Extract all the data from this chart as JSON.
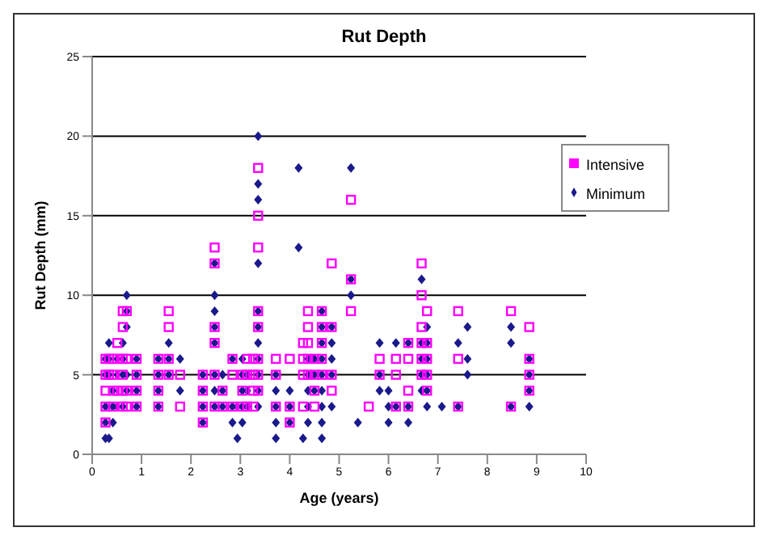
{
  "chart_data": {
    "type": "scatter",
    "title": "Rut Depth",
    "xlabel": "Age (years)",
    "ylabel": "Rut Depth (mm)",
    "xlim": [
      0,
      10
    ],
    "xticks": [
      0,
      1,
      2,
      3,
      4,
      5,
      6,
      7,
      8,
      9,
      10
    ],
    "ylim": [
      0,
      25
    ],
    "yticks": [
      0,
      5,
      10,
      15,
      20,
      25
    ],
    "grid": "y",
    "legend": "top right",
    "series": [
      {
        "name": "Minimum",
        "color": "#1a1a8c",
        "marker": "diamond",
        "x": [
          0.27,
          0.27,
          0.27,
          0.27,
          0.27,
          0.34,
          0.34,
          0.34,
          0.34,
          0.42,
          0.42,
          0.42,
          0.51,
          0.51,
          0.51,
          0.62,
          0.62,
          0.62,
          0.62,
          0.7,
          0.7,
          0.7,
          0.7,
          0.7,
          0.9,
          0.9,
          0.9,
          0.9,
          1.34,
          1.34,
          1.34,
          1.34,
          1.55,
          1.55,
          1.55,
          1.78,
          1.78,
          2.24,
          2.24,
          2.24,
          2.24,
          2.48,
          2.48,
          2.48,
          2.48,
          2.48,
          2.48,
          2.48,
          2.48,
          2.64,
          2.64,
          2.64,
          2.84,
          2.84,
          2.84,
          2.94,
          2.94,
          3.04,
          3.04,
          3.04,
          3.04,
          3.04,
          3.14,
          3.14,
          3.14,
          3.36,
          3.36,
          3.36,
          3.36,
          3.36,
          3.36,
          3.36,
          3.36,
          3.36,
          3.36,
          3.36,
          3.72,
          3.72,
          3.72,
          3.72,
          3.72,
          4.0,
          4.0,
          4.0,
          4.18,
          4.18,
          4.27,
          4.37,
          4.37,
          4.37,
          4.37,
          4.37,
          4.5,
          4.5,
          4.5,
          4.65,
          4.65,
          4.65,
          4.65,
          4.65,
          4.65,
          4.65,
          4.65,
          4.65,
          4.85,
          4.85,
          4.85,
          4.85,
          4.85,
          5.24,
          5.24,
          5.24,
          5.38,
          5.82,
          5.82,
          5.82,
          6.0,
          6.0,
          6.0,
          6.15,
          6.15,
          6.4,
          6.4,
          6.4,
          6.67,
          6.67,
          6.67,
          6.67,
          6.67,
          6.78,
          6.78,
          6.78,
          6.78,
          6.78,
          6.78,
          7.08,
          7.41,
          7.41,
          7.6,
          7.6,
          7.6,
          8.48,
          8.48,
          8.48,
          8.85,
          8.85,
          8.85,
          8.85
        ],
        "values": [
          1,
          2,
          3,
          5,
          6,
          1,
          5,
          6,
          7,
          2,
          3,
          4,
          3,
          5,
          6,
          3,
          5,
          6,
          7,
          4,
          5,
          8,
          9,
          10,
          3,
          4,
          5,
          6,
          3,
          4,
          5,
          6,
          5,
          6,
          7,
          4,
          6,
          2,
          3,
          4,
          5,
          3,
          4,
          5,
          7,
          8,
          9,
          10,
          12,
          3,
          4,
          5,
          2,
          3,
          6,
          1,
          3,
          2,
          3,
          4,
          5,
          6,
          3,
          4,
          5,
          3,
          4,
          5,
          6,
          7,
          8,
          9,
          12,
          16,
          17,
          20,
          1,
          2,
          3,
          4,
          5,
          2,
          3,
          4,
          13,
          18,
          1,
          2,
          3,
          4,
          5,
          6,
          4,
          5,
          6,
          1,
          2,
          3,
          4,
          5,
          6,
          7,
          8,
          9,
          3,
          5,
          6,
          7,
          8,
          10,
          11,
          18,
          2,
          4,
          5,
          7,
          2,
          3,
          4,
          3,
          7,
          2,
          3,
          7,
          4,
          5,
          6,
          7,
          11,
          3,
          4,
          5,
          6,
          7,
          8,
          3,
          3,
          7,
          5,
          6,
          8,
          3,
          7,
          8,
          3,
          4,
          5,
          6
        ]
      },
      {
        "name": "Intensive",
        "color": "#ff00ff",
        "marker": "square",
        "x": [
          0.27,
          0.27,
          0.27,
          0.27,
          0.27,
          0.34,
          0.34,
          0.42,
          0.42,
          0.42,
          0.42,
          0.51,
          0.51,
          0.51,
          0.62,
          0.62,
          0.62,
          0.62,
          0.62,
          0.62,
          0.7,
          0.7,
          0.7,
          0.7,
          0.9,
          0.9,
          0.9,
          0.9,
          1.34,
          1.34,
          1.34,
          1.34,
          1.55,
          1.55,
          1.55,
          1.55,
          1.78,
          1.78,
          2.24,
          2.24,
          2.24,
          2.24,
          2.48,
          2.48,
          2.48,
          2.48,
          2.48,
          2.48,
          2.64,
          2.64,
          2.84,
          2.84,
          2.84,
          3.04,
          3.04,
          3.04,
          3.14,
          3.14,
          3.14,
          3.26,
          3.26,
          3.26,
          3.26,
          3.36,
          3.36,
          3.36,
          3.36,
          3.36,
          3.36,
          3.36,
          3.36,
          3.72,
          3.72,
          3.72,
          4.0,
          4.0,
          4.0,
          4.27,
          4.27,
          4.27,
          4.27,
          4.37,
          4.37,
          4.37,
          4.37,
          4.37,
          4.5,
          4.5,
          4.5,
          4.5,
          4.65,
          4.65,
          4.65,
          4.65,
          4.65,
          4.85,
          4.85,
          4.85,
          4.85,
          5.24,
          5.24,
          5.24,
          5.6,
          5.82,
          5.82,
          6.15,
          6.15,
          6.15,
          6.4,
          6.4,
          6.4,
          6.4,
          6.67,
          6.67,
          6.67,
          6.67,
          6.67,
          6.67,
          6.78,
          6.78,
          6.78,
          6.78,
          6.78,
          7.41,
          7.41,
          7.41,
          8.48,
          8.48,
          8.85,
          8.85,
          8.85,
          8.85
        ],
        "values": [
          2,
          3,
          4,
          5,
          6,
          5,
          6,
          3,
          4,
          5,
          6,
          4,
          6,
          7,
          3,
          4,
          5,
          6,
          8,
          9,
          3,
          4,
          6,
          9,
          3,
          4,
          5,
          6,
          3,
          4,
          5,
          6,
          5,
          6,
          8,
          9,
          3,
          5,
          2,
          3,
          4,
          5,
          3,
          5,
          7,
          8,
          12,
          13,
          3,
          4,
          3,
          5,
          6,
          3,
          4,
          5,
          3,
          5,
          6,
          3,
          4,
          5,
          6,
          4,
          5,
          6,
          8,
          9,
          13,
          15,
          18,
          3,
          5,
          6,
          2,
          3,
          6,
          3,
          5,
          6,
          7,
          5,
          6,
          7,
          8,
          9,
          3,
          4,
          5,
          6,
          5,
          6,
          7,
          8,
          9,
          4,
          5,
          8,
          12,
          9,
          11,
          16,
          3,
          5,
          6,
          3,
          5,
          6,
          3,
          4,
          6,
          7,
          5,
          6,
          7,
          8,
          10,
          12,
          4,
          5,
          6,
          7,
          9,
          3,
          6,
          9,
          3,
          9,
          4,
          5,
          6,
          8
        ]
      }
    ]
  }
}
